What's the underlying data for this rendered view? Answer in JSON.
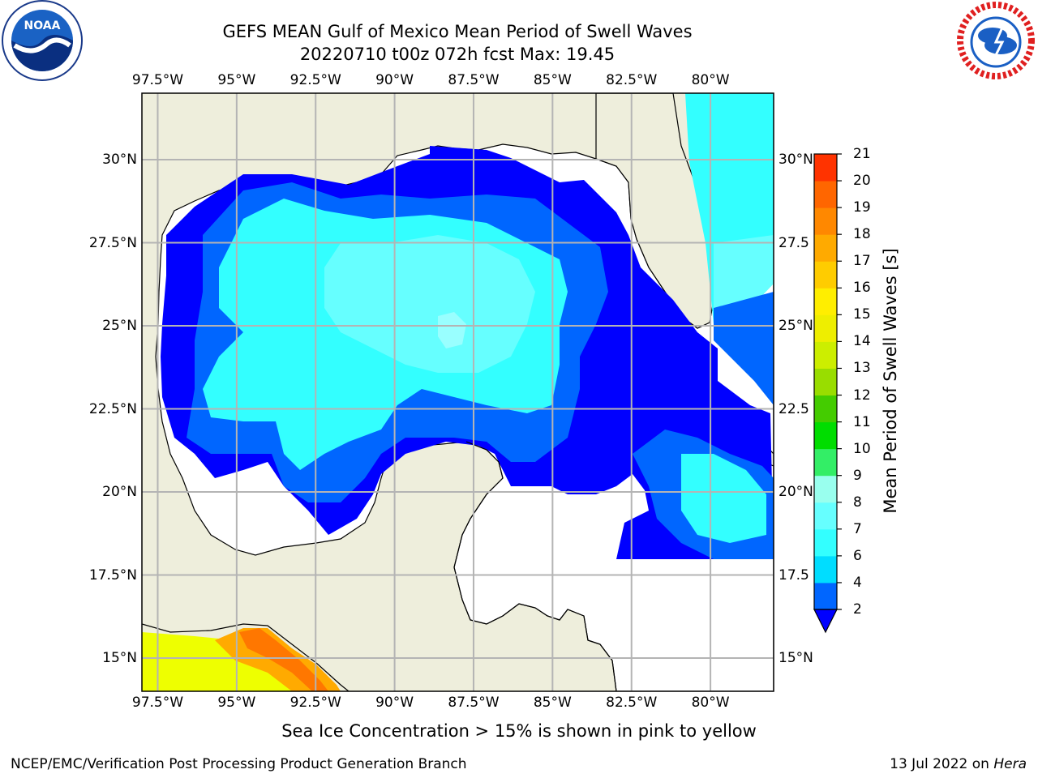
{
  "title": "GEFS MEAN Gulf of Mexico Mean Period of Swell Waves",
  "subtitle": "20220710 t00z 072h fcst   Max: 19.45",
  "map": {
    "lon_labels": [
      "97.5°W",
      "95°W",
      "92.5°W",
      "90°W",
      "87.5°W",
      "85°W",
      "82.5°W",
      "80°W"
    ],
    "lon_values": [
      -97.5,
      -95,
      -92.5,
      -90,
      -87.5,
      -85,
      -82.5,
      -80
    ],
    "lat_labels_left": [
      "30°N",
      "27.5°N",
      "25°N",
      "22.5°N",
      "20°N",
      "17.5°N",
      "15°N"
    ],
    "lat_labels_right": [
      "30°N",
      "27.5",
      "25°N",
      "22.5",
      "20°N",
      "17.5",
      "15°N"
    ],
    "lat_values": [
      30,
      27.5,
      25,
      22.5,
      20,
      17.5,
      15
    ],
    "extent": {
      "lon_min": -98,
      "lon_max": -78,
      "lat_min": 14,
      "lat_max": 32
    },
    "max_value": 19.45,
    "colors": {
      "land": "#eeeedc",
      "coast": "#000000",
      "grid": "#b4b4b4"
    }
  },
  "colorbar": {
    "label": "Mean Period of Swell Waves [s]",
    "ticks": [
      "2",
      "4",
      "6",
      "7",
      "8",
      "9",
      "10",
      "11",
      "12",
      "13",
      "14",
      "15",
      "16",
      "17",
      "18",
      "19",
      "20",
      "21"
    ],
    "tick_values": [
      2,
      4,
      6,
      7,
      8,
      9,
      10,
      11,
      12,
      13,
      14,
      15,
      16,
      17,
      18,
      19,
      20,
      21
    ],
    "colors": [
      "#0066ff",
      "#00ddff",
      "#33ffff",
      "#66ffff",
      "#99ffee",
      "#33ee66",
      "#00dd00",
      "#44cc00",
      "#99dd00",
      "#ccee00",
      "#eeee00",
      "#ffee00",
      "#ffcc00",
      "#ffaa00",
      "#ff8800",
      "#ff6600",
      "#ff3300",
      "#ff0000"
    ],
    "under_color": "#0000ff"
  },
  "footer_note": "Sea Ice Concentration > 15% is shown in pink to yellow",
  "credit": "NCEP/EMC/Verification Post Processing Product Generation Branch",
  "date": "13 Jul 2022 on",
  "machine": "Hera",
  "logos": {
    "left": {
      "name": "noaa-logo",
      "text": "NOAA"
    },
    "right": {
      "name": "nws-logo",
      "text": "NATIONAL WEATHER SERVICE"
    }
  }
}
